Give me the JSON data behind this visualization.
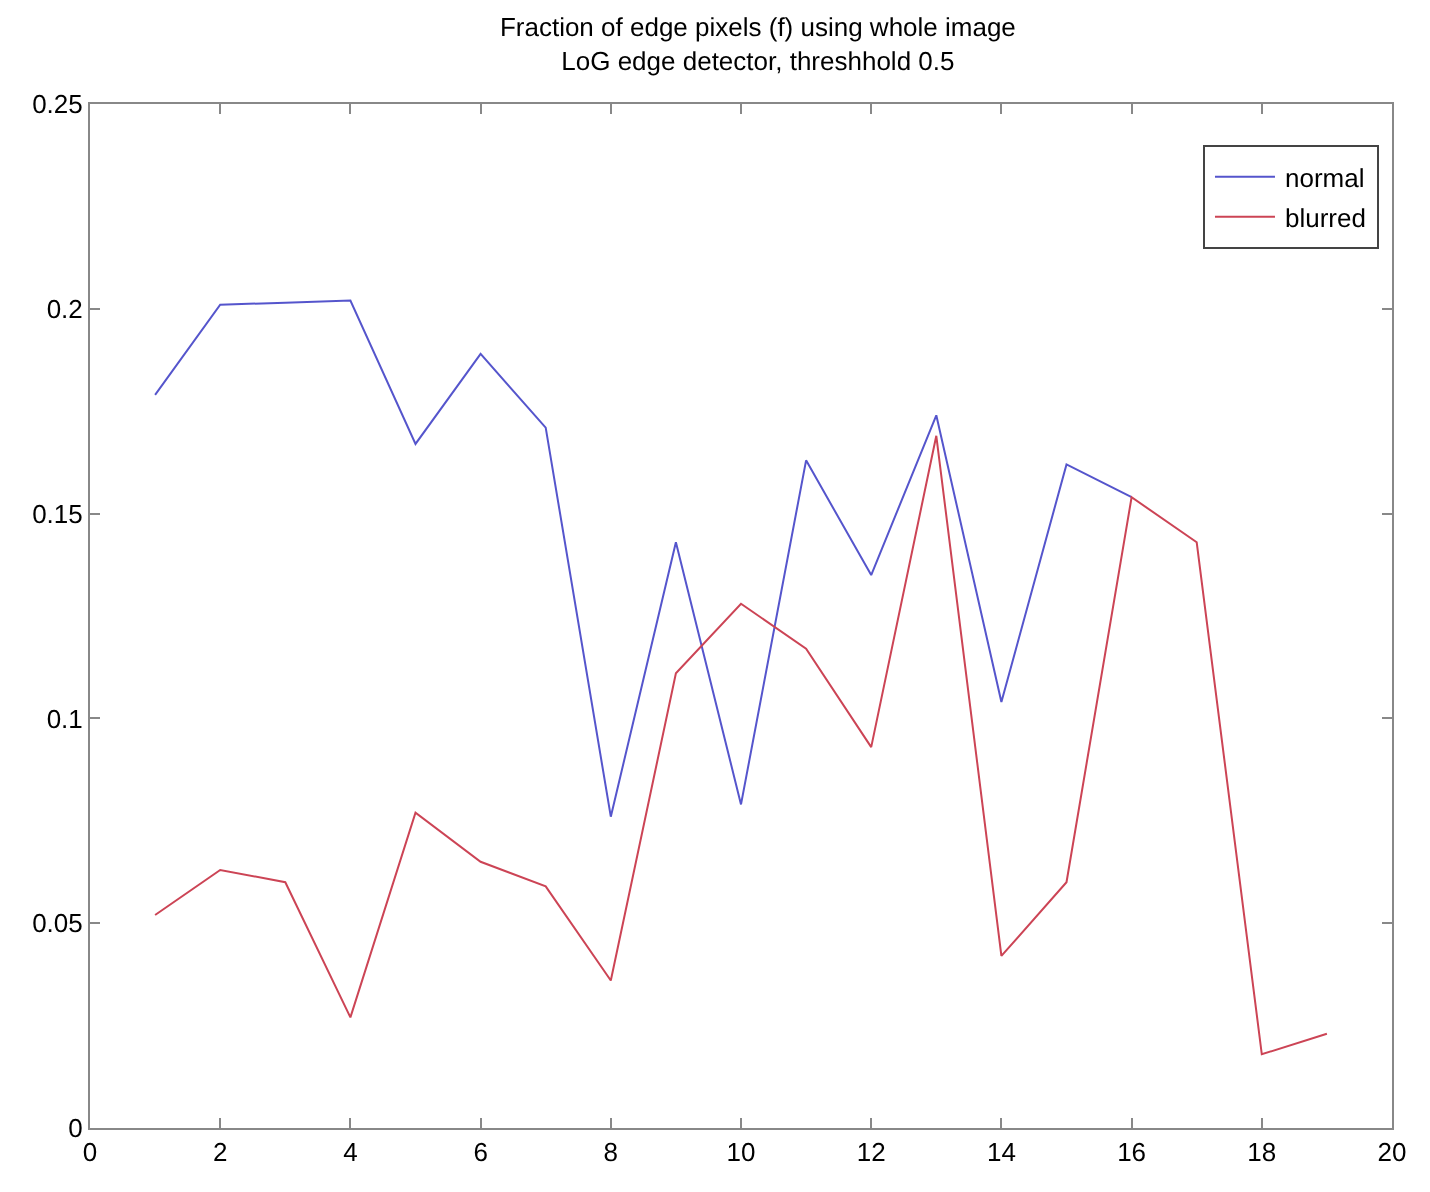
{
  "chart_data": {
    "type": "line",
    "title": "Fraction of edge pixels (f) using whole image\nLoG edge detector, threshhold 0.5",
    "x": [
      1,
      2,
      3,
      4,
      5,
      6,
      7,
      8,
      9,
      10,
      11,
      12,
      13,
      14,
      15,
      16,
      17,
      18,
      19
    ],
    "series": [
      {
        "name": "normal",
        "color": "#5555cc",
        "values": [
          0.179,
          0.201,
          0.2015,
          0.202,
          0.167,
          0.189,
          0.171,
          0.076,
          0.143,
          0.079,
          0.163,
          0.135,
          0.174,
          0.104,
          0.162,
          0.154,
          null,
          null,
          null
        ]
      },
      {
        "name": "blurred",
        "color": "#cc4455",
        "values": [
          0.052,
          0.063,
          0.06,
          0.027,
          0.077,
          0.065,
          0.059,
          0.036,
          0.111,
          0.128,
          0.117,
          0.093,
          0.169,
          0.042,
          0.06,
          0.154,
          0.143,
          0.018,
          0.023
        ]
      }
    ],
    "xlim": [
      0,
      20
    ],
    "xticks": [
      0,
      2,
      4,
      6,
      8,
      10,
      12,
      14,
      16,
      18,
      20
    ],
    "ylim": [
      0,
      0.25
    ],
    "yticks": [
      0,
      0.05,
      0.1,
      0.15,
      0.2,
      0.25
    ],
    "legend": "top right",
    "marker": "none",
    "line_style": "solid"
  }
}
